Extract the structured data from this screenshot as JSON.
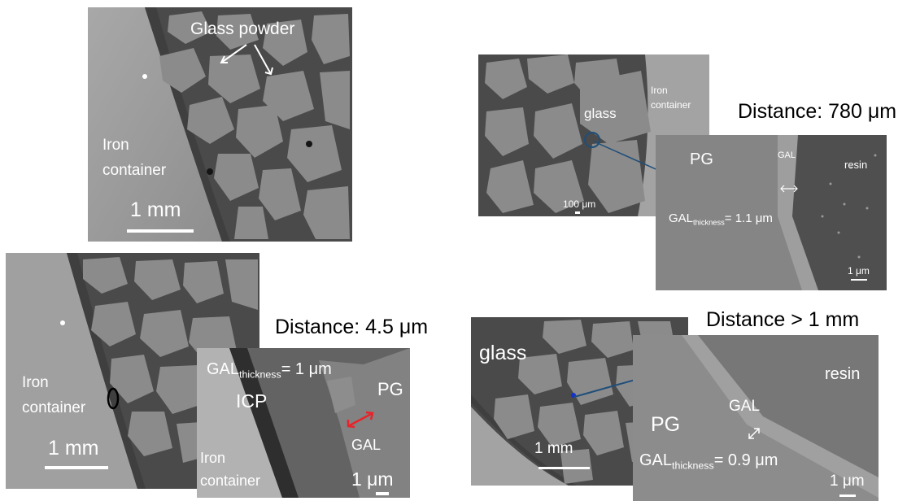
{
  "headings": {
    "top_right": "Distance: 780 μm",
    "bottom_left": "Distance: 4.5 μm",
    "bottom_right": "Distance > 1 mm"
  },
  "panel_tl": {
    "glass_powder": "Glass powder",
    "iron_line1": "Iron",
    "iron_line2": "container",
    "scale": "1 mm"
  },
  "panel_bl": {
    "iron_line1": "Iron",
    "iron_line2": "container",
    "scale": "1 mm"
  },
  "panel_bl_zoom": {
    "gal_prefix": "GAL",
    "gal_sub": "thickness",
    "gal_value": "= 1 μm",
    "icp": "ICP",
    "pg": "PG",
    "gal": "GAL",
    "iron_line1": "Iron",
    "iron_line2": "container",
    "scale": "1 μm"
  },
  "panel_tr": {
    "glass": "glass",
    "iron_line1": "Iron",
    "iron_line2": "container",
    "scale": "100 μm"
  },
  "panel_tr_zoom": {
    "pg": "PG",
    "gal": "GAL",
    "resin": "resin",
    "gal_prefix": "GAL",
    "gal_sub": "thickness",
    "gal_value": "= 1.1 μm",
    "scale": "1 μm"
  },
  "panel_br": {
    "glass": "glass",
    "scale": "1 mm"
  },
  "panel_br_zoom": {
    "resin": "resin",
    "gal": "GAL",
    "pg": "PG",
    "gal_prefix": "GAL",
    "gal_sub": "thickness",
    "gal_value": "= 0.9 μm",
    "scale": "1 μm"
  },
  "colors": {
    "grain": "#8b8b8b",
    "matrix": "#474747",
    "container": "#9a9a9a",
    "double_arrow": "#e8242a",
    "connector": "#1f4e79"
  }
}
